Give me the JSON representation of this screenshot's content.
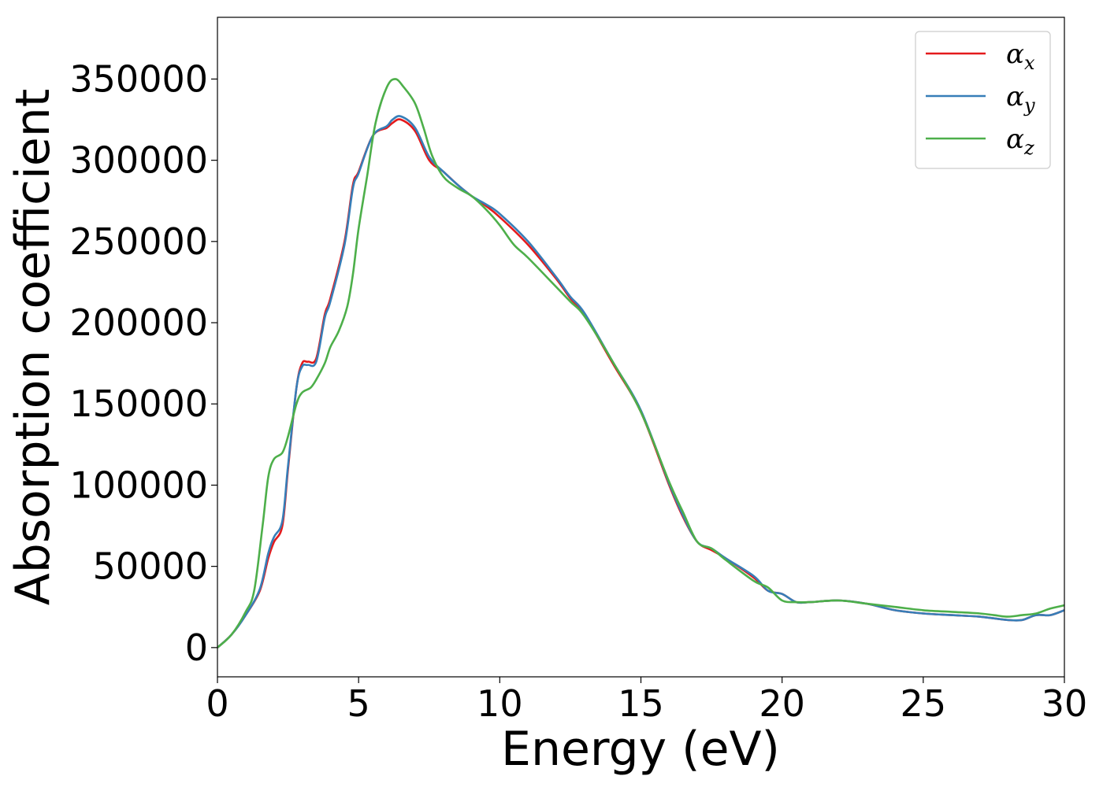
{
  "chart_data": {
    "type": "line",
    "xlabel": "Energy (eV)",
    "ylabel": "Absorption coefficient",
    "xlim": [
      0,
      30
    ],
    "ylim": [
      -18000,
      388000
    ],
    "xticks": [
      0,
      5,
      10,
      15,
      20,
      25,
      30
    ],
    "yticks": [
      0,
      50000,
      100000,
      150000,
      200000,
      250000,
      300000,
      350000
    ],
    "grid": false,
    "legend_position": "top-right",
    "series": [
      {
        "name": "α",
        "sub": "x",
        "color": "#e41a1c",
        "x": [
          0,
          0.5,
          1.0,
          1.5,
          1.8,
          2.0,
          2.3,
          2.5,
          2.8,
          3.0,
          3.2,
          3.5,
          3.8,
          4.0,
          4.5,
          4.8,
          5.0,
          5.5,
          6.0,
          6.2,
          6.5,
          7.0,
          7.5,
          8.0,
          8.5,
          9.0,
          9.5,
          10.0,
          11.0,
          12.0,
          12.5,
          13.0,
          14.0,
          15.0,
          16.0,
          16.5,
          17.0,
          17.5,
          18.0,
          19.0,
          19.5,
          20.0,
          20.5,
          21.0,
          22.0,
          23.0,
          24.0,
          25.0,
          26.0,
          27.0,
          28.0,
          28.5,
          29.0,
          29.5,
          30.0
        ],
        "y": [
          0,
          8000,
          20000,
          35000,
          55000,
          65000,
          75000,
          110000,
          160000,
          175000,
          176000,
          178000,
          205000,
          215000,
          250000,
          285000,
          293000,
          315000,
          320000,
          323000,
          325000,
          318000,
          300000,
          293000,
          285000,
          278000,
          272000,
          265000,
          248000,
          227000,
          215000,
          205000,
          175000,
          145000,
          100000,
          80000,
          65000,
          60000,
          55000,
          43000,
          35000,
          33000,
          28000,
          28000,
          29000,
          27000,
          23000,
          21000,
          20000,
          19000,
          17000,
          17000,
          20000,
          20000,
          23000
        ]
      },
      {
        "name": "α",
        "sub": "y",
        "color": "#377eb8",
        "x": [
          0,
          0.5,
          1.0,
          1.5,
          1.8,
          2.0,
          2.3,
          2.5,
          2.8,
          3.0,
          3.2,
          3.5,
          3.8,
          4.0,
          4.5,
          4.8,
          5.0,
          5.5,
          6.0,
          6.2,
          6.5,
          7.0,
          7.5,
          8.0,
          8.5,
          9.0,
          9.5,
          10.0,
          11.0,
          12.0,
          12.5,
          13.0,
          14.0,
          15.0,
          16.0,
          16.5,
          17.0,
          17.5,
          18.0,
          19.0,
          19.5,
          20.0,
          20.5,
          21.0,
          22.0,
          23.0,
          24.0,
          25.0,
          26.0,
          27.0,
          28.0,
          28.5,
          29.0,
          29.5,
          30.0
        ],
        "y": [
          0,
          8000,
          20000,
          36000,
          58000,
          68000,
          78000,
          112000,
          160000,
          173000,
          174000,
          176000,
          203000,
          213000,
          248000,
          283000,
          292000,
          315000,
          321000,
          325000,
          327000,
          320000,
          302000,
          293000,
          285000,
          278000,
          273000,
          267000,
          250000,
          228000,
          216000,
          206000,
          176000,
          146000,
          101000,
          81000,
          65000,
          61000,
          55000,
          44000,
          35000,
          33000,
          28000,
          28000,
          29000,
          27000,
          23000,
          21000,
          20000,
          19000,
          17000,
          17000,
          20000,
          20000,
          23000
        ]
      },
      {
        "name": "α",
        "sub": "z",
        "color": "#4daf4a",
        "x": [
          0,
          0.5,
          1.0,
          1.3,
          1.6,
          1.8,
          2.0,
          2.3,
          2.5,
          2.8,
          3.0,
          3.3,
          3.5,
          3.8,
          4.0,
          4.3,
          4.6,
          4.8,
          5.0,
          5.3,
          5.6,
          6.0,
          6.3,
          6.6,
          7.0,
          7.3,
          7.6,
          8.0,
          8.5,
          9.0,
          9.5,
          10.0,
          10.5,
          11.0,
          12.0,
          12.5,
          13.0,
          14.0,
          15.0,
          16.0,
          16.5,
          17.0,
          17.5,
          18.0,
          19.0,
          19.5,
          20.0,
          20.5,
          21.0,
          22.0,
          23.0,
          24.0,
          25.0,
          26.0,
          27.0,
          27.5,
          28.0,
          28.5,
          29.0,
          29.5,
          30.0
        ],
        "y": [
          0,
          8000,
          22000,
          35000,
          75000,
          105000,
          116000,
          120000,
          130000,
          150000,
          157000,
          160000,
          165000,
          175000,
          185000,
          195000,
          210000,
          230000,
          258000,
          290000,
          323000,
          345000,
          350000,
          345000,
          335000,
          320000,
          303000,
          290000,
          283000,
          278000,
          270000,
          260000,
          248000,
          240000,
          222000,
          213000,
          204000,
          176000,
          145000,
          102000,
          83000,
          65000,
          61000,
          54000,
          41000,
          37000,
          29000,
          28000,
          28000,
          29000,
          27000,
          25000,
          23000,
          22000,
          21000,
          20000,
          19000,
          20000,
          21000,
          24000,
          26000
        ]
      }
    ]
  }
}
